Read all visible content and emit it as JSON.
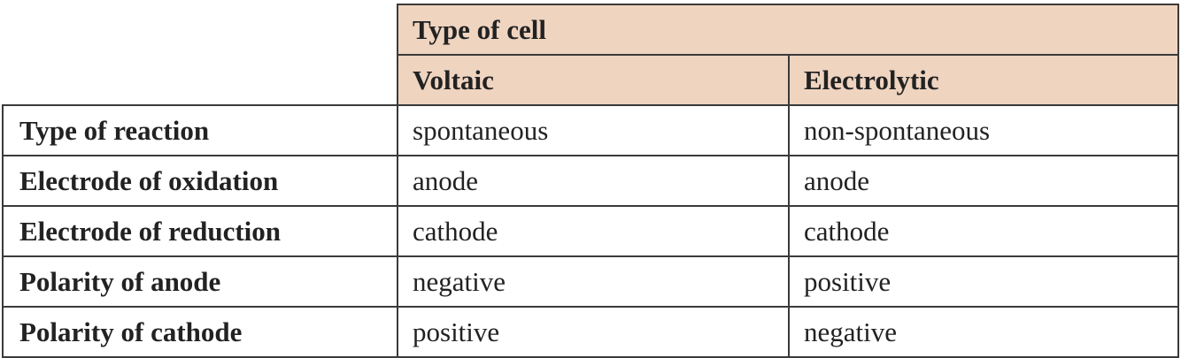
{
  "table": {
    "group_header": "Type of cell",
    "columns": [
      "Voltaic",
      "Electrolytic"
    ],
    "rows": [
      {
        "label": "Type of reaction",
        "voltaic": "spontaneous",
        "electrolytic": "non-spontaneous"
      },
      {
        "label": "Electrode of oxidation",
        "voltaic": "anode",
        "electrolytic": "anode"
      },
      {
        "label": "Electrode of reduction",
        "voltaic": "cathode",
        "electrolytic": "cathode"
      },
      {
        "label": "Polarity of anode",
        "voltaic": "negative",
        "electrolytic": "positive"
      },
      {
        "label": "Polarity of cathode",
        "voltaic": "positive",
        "electrolytic": "negative"
      }
    ],
    "header_color": "#efd4c0",
    "border_color": "#3a3a3a"
  }
}
